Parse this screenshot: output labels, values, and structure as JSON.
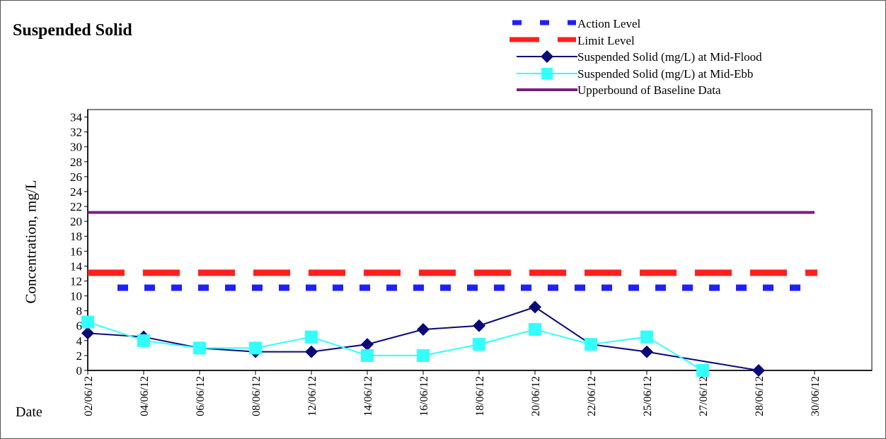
{
  "chart_data": {
    "type": "line",
    "title": "Suspended Solid",
    "ylabel": "Concentration, mg/L",
    "xlabel": "Date",
    "ylim": [
      0,
      34
    ],
    "yticks": [
      "0",
      "2",
      "4",
      "6",
      "8",
      "10",
      "12",
      "14",
      "16",
      "18",
      "20",
      "22",
      "24",
      "26",
      "28",
      "30",
      "32",
      "34"
    ],
    "categories": [
      "02/06/12",
      "04/06/12",
      "06/06/12",
      "08/06/12",
      "12/06/12",
      "14/06/12",
      "16/06/12",
      "18/06/12",
      "20/06/12",
      "22/06/12",
      "25/06/12",
      "27/06/12",
      "28/06/12",
      "30/06/12"
    ],
    "legend_position": "top-right",
    "series": [
      {
        "name": "Action Level",
        "style": "dashed",
        "color": "#1f1fff",
        "values": [
          11.1,
          11.1,
          11.1,
          11.1,
          11.1,
          11.1,
          11.1,
          11.1,
          11.1,
          11.1,
          11.1,
          11.1,
          11.1,
          11.1
        ]
      },
      {
        "name": "Limit Level",
        "style": "dashed",
        "color": "#ff1f1f",
        "values": [
          13.1,
          13.1,
          13.1,
          13.1,
          13.1,
          13.1,
          13.1,
          13.1,
          13.1,
          13.1,
          13.1,
          13.1,
          13.1,
          13.1
        ]
      },
      {
        "name": "Suspended Solid (mg/L) at Mid-Flood",
        "style": "line-diamond",
        "color": "#0a0a78",
        "values": [
          5,
          4.5,
          3,
          2.5,
          2.5,
          3.5,
          5.5,
          6,
          8.5,
          3.5,
          2.5,
          null,
          0,
          null
        ]
      },
      {
        "name": "Suspended Solid (mg/L) at Mid-Ebb",
        "style": "line-square",
        "color": "#33ffff",
        "values": [
          6.5,
          4,
          3,
          3,
          4.5,
          2,
          2,
          3.5,
          5.5,
          3.5,
          4.5,
          0,
          null,
          null
        ]
      },
      {
        "name": "Upperbound of Baseline Data",
        "style": "solid",
        "color": "#7a1f7a",
        "values": [
          21.2,
          21.2,
          21.2,
          21.2,
          21.2,
          21.2,
          21.2,
          21.2,
          21.2,
          21.2,
          21.2,
          21.2,
          21.2,
          21.2
        ]
      }
    ]
  }
}
